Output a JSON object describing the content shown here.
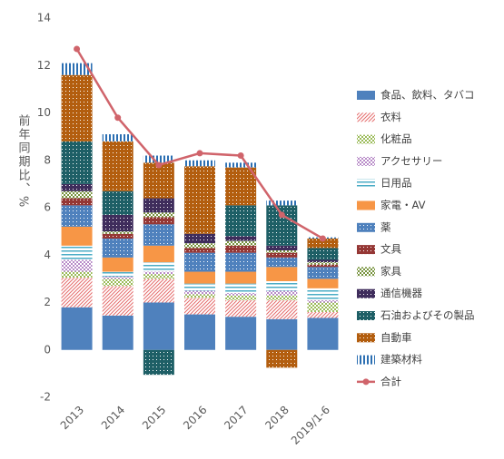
{
  "chart_data": {
    "type": "bar",
    "stacked": true,
    "y_label": "前年同期比、%",
    "categories": [
      "2013",
      "2014",
      "2015",
      "2016",
      "2017",
      "2018",
      "2019/1-6"
    ],
    "ylim": [
      -2,
      14
    ],
    "yticks": [
      -2,
      0,
      2,
      4,
      6,
      8,
      10,
      12,
      14
    ],
    "grid": false,
    "series": [
      {
        "name": "食品、飲料、タバコ",
        "color": "#4f81bd",
        "pattern": "solid",
        "values": [
          1.8,
          1.45,
          2.0,
          1.5,
          1.4,
          1.3,
          1.35
        ]
      },
      {
        "name": "衣料",
        "color": "#e46c6c",
        "pattern": "diagonal",
        "values": [
          1.25,
          1.25,
          1.0,
          0.7,
          0.7,
          0.8,
          0.25
        ]
      },
      {
        "name": "化粧品",
        "color": "#9bbb59",
        "pattern": "dots",
        "values": [
          0.25,
          0.3,
          0.2,
          0.15,
          0.2,
          0.2,
          0.4
        ]
      },
      {
        "name": "アクセサリー",
        "color": "#b88cc8",
        "pattern": "dots",
        "values": [
          0.5,
          0.1,
          0.1,
          0.15,
          0.1,
          0.2,
          0.1
        ]
      },
      {
        "name": "日用品",
        "color": "#4bacc6",
        "pattern": "horizontal",
        "values": [
          0.6,
          0.2,
          0.4,
          0.3,
          0.4,
          0.4,
          0.5
        ]
      },
      {
        "name": "家電・AV",
        "color": "#f79646",
        "pattern": "solid",
        "values": [
          0.8,
          0.6,
          0.7,
          0.5,
          0.5,
          0.6,
          0.4
        ]
      },
      {
        "name": "薬",
        "color": "#4f81bd",
        "pattern": "grid",
        "values": [
          0.9,
          0.8,
          0.9,
          0.8,
          0.8,
          0.4,
          0.5
        ]
      },
      {
        "name": "文具",
        "color": "#953735",
        "pattern": "grid",
        "values": [
          0.3,
          0.2,
          0.3,
          0.2,
          0.3,
          0.2,
          0.1
        ]
      },
      {
        "name": "家具",
        "color": "#76923c",
        "pattern": "dots",
        "values": [
          0.3,
          0.1,
          0.2,
          0.2,
          0.2,
          0.1,
          0.1
        ]
      },
      {
        "name": "通信機器",
        "color": "#3f2d5c",
        "pattern": "grid",
        "values": [
          0.3,
          0.7,
          0.6,
          0.4,
          0.2,
          0.2,
          0.1
        ]
      },
      {
        "name": "石油およびその製品",
        "color": "#1e5f66",
        "pattern": "grid",
        "values": [
          1.8,
          1.0,
          -1.05,
          0,
          1.3,
          1.7,
          0.5
        ]
      },
      {
        "name": "自動車",
        "color": "#b35e0f",
        "pattern": "grid",
        "values": [
          2.8,
          2.1,
          1.5,
          2.85,
          1.6,
          -0.75,
          0.4
        ]
      },
      {
        "name": "建築材料",
        "color": "#2c6fb2",
        "pattern": "vertical",
        "values": [
          0.5,
          0.3,
          0.3,
          0.25,
          0.2,
          0.2,
          0.05
        ]
      }
    ],
    "line": {
      "name": "合計",
      "color": "#d0646b",
      "values": [
        12.7,
        9.8,
        7.8,
        8.3,
        8.2,
        5.7,
        4.7
      ]
    }
  }
}
